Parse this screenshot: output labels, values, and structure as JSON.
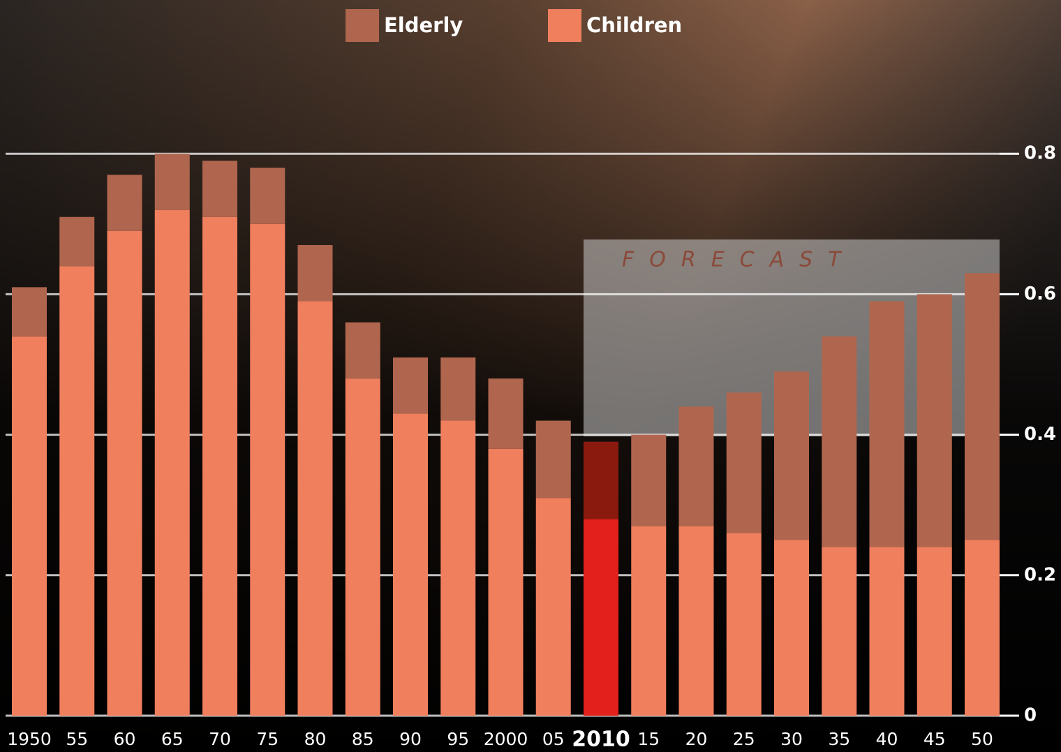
{
  "chart_data": {
    "type": "stacked-bar",
    "categories": [
      "1950",
      "55",
      "60",
      "65",
      "70",
      "75",
      "80",
      "85",
      "90",
      "95",
      "2000",
      "05",
      "2010",
      "15",
      "20",
      "25",
      "30",
      "35",
      "40",
      "45",
      "50"
    ],
    "series": [
      {
        "name": "Children",
        "color": "#f07f5e",
        "values": [
          0.54,
          0.64,
          0.69,
          0.72,
          0.71,
          0.7,
          0.59,
          0.48,
          0.43,
          0.42,
          0.38,
          0.31,
          0.28,
          0.27,
          0.27,
          0.26,
          0.25,
          0.24,
          0.24,
          0.24,
          0.25
        ]
      },
      {
        "name": "Elderly",
        "color": "#b0664e",
        "values": [
          0.07,
          0.07,
          0.08,
          0.08,
          0.08,
          0.08,
          0.08,
          0.08,
          0.08,
          0.09,
          0.1,
          0.11,
          0.11,
          0.13,
          0.17,
          0.2,
          0.24,
          0.3,
          0.35,
          0.36,
          0.38
        ]
      }
    ],
    "highlight": {
      "category": "2010",
      "colors": [
        "#e3201b",
        "#8b1a0e"
      ]
    },
    "annotation": "FORECAST",
    "ylim": [
      0,
      1.0
    ],
    "yticks": [
      0,
      0.2,
      0.4,
      0.6,
      0.8
    ],
    "grid": true,
    "legend": "top"
  }
}
